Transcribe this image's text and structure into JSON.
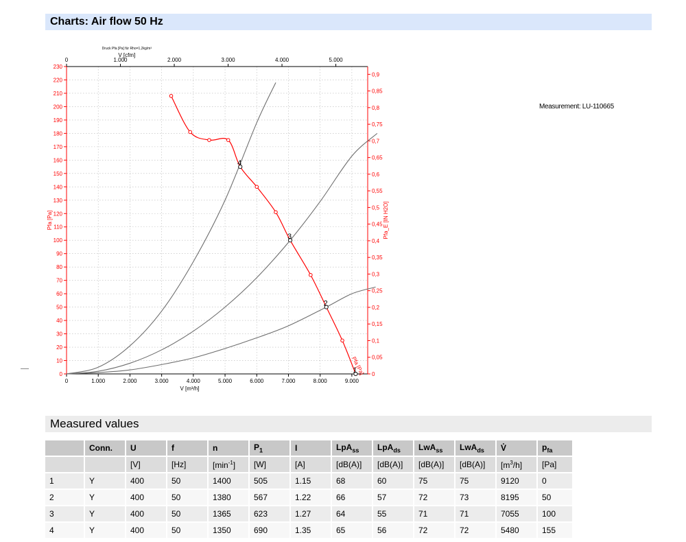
{
  "header": {
    "title": "Charts: Air flow 50 Hz"
  },
  "measurement_label": "Measurement: LU-110665",
  "measured_section": {
    "title": "Measured values"
  },
  "table": {
    "columns": [
      {
        "main": "",
        "sub": ""
      },
      {
        "main": "Conn.",
        "sub": ""
      },
      {
        "main": "U",
        "sub": ""
      },
      {
        "main": "f",
        "sub": ""
      },
      {
        "main": "n",
        "sub": ""
      },
      {
        "main": "P",
        "sub": "1"
      },
      {
        "main": "I",
        "sub": ""
      },
      {
        "main": "LpA",
        "sub": "ss"
      },
      {
        "main": "LpA",
        "sub": "ds"
      },
      {
        "main": "LwA",
        "sub": "ss"
      },
      {
        "main": "LwA",
        "sub": "ds"
      },
      {
        "main": "V̊",
        "sub": ""
      },
      {
        "main": "p",
        "sub": "fa"
      }
    ],
    "units": [
      "",
      "",
      "[V]",
      "[Hz]",
      "[min-1]",
      "[W]",
      "[A]",
      "[dB(A)]",
      "[dB(A)]",
      "[dB(A)]",
      "[dB(A)]",
      "[m3/h]",
      "[Pa]"
    ],
    "rows": [
      [
        "1",
        "Y",
        "400",
        "50",
        "1400",
        "505",
        "1.15",
        "68",
        "60",
        "75",
        "75",
        "9120",
        "0"
      ],
      [
        "2",
        "Y",
        "400",
        "50",
        "1380",
        "567",
        "1.22",
        "66",
        "57",
        "72",
        "73",
        "8195",
        "50"
      ],
      [
        "3",
        "Y",
        "400",
        "50",
        "1365",
        "623",
        "1.27",
        "64",
        "55",
        "71",
        "71",
        "7055",
        "100"
      ],
      [
        "4",
        "Y",
        "400",
        "50",
        "1350",
        "690",
        "1.35",
        "65",
        "56",
        "72",
        "72",
        "5480",
        "155"
      ]
    ]
  },
  "chart_data": {
    "type": "line",
    "title": "Druck Pfa [Pa] für Rho=1,2kg/m³",
    "xlabel": "V [m³/h]",
    "x2label": "V [cfm]",
    "ylabel": "Pfa [Pa]",
    "y2label": "Pfa_E [IN H2O]",
    "xlim": [
      0,
      9500
    ],
    "ylim": [
      0,
      230
    ],
    "x_ticks": [
      0,
      1000,
      2000,
      3000,
      4000,
      5000,
      6000,
      7000,
      8000,
      9000
    ],
    "x_tick_labels": [
      "0",
      "1.000",
      "2.000",
      "3.000",
      "4.000",
      "5.000",
      "6.000",
      "7.000",
      "8.000",
      "9.000"
    ],
    "x2_ticks": [
      0,
      1000,
      2000,
      3000,
      4000,
      5000
    ],
    "x2_tick_labels": [
      "0",
      "1.000",
      "2.000",
      "3.000",
      "4.000",
      "5.000"
    ],
    "y_ticks": [
      0,
      10,
      20,
      30,
      40,
      50,
      60,
      70,
      80,
      90,
      100,
      110,
      120,
      130,
      140,
      150,
      160,
      170,
      180,
      190,
      200,
      210,
      220,
      230
    ],
    "y2_ticks": [
      "0",
      "0,05",
      "0,1",
      "0,15",
      "0,2",
      "0,25",
      "0,3",
      "0,35",
      "0,4",
      "0,45",
      "0,5",
      "0,55",
      "0,6",
      "0,65",
      "0,7",
      "0,75",
      "0,8",
      "0,85",
      "0,9"
    ],
    "grid": true,
    "series": [
      {
        "name": "Pfa [Pa]",
        "color": "#ff0000",
        "x": [
          3300,
          3900,
          4500,
          5100,
          5480,
          6000,
          6600,
          7055,
          7700,
          8195,
          8700,
          9120
        ],
        "y": [
          208,
          181,
          175,
          175,
          155,
          140,
          121,
          100,
          74,
          50,
          25,
          0
        ]
      }
    ],
    "system_curves": [
      {
        "x": [
          0,
          1000,
          2000,
          3000,
          4000,
          5000,
          6000,
          6600
        ],
        "y": [
          0,
          5,
          21,
          47,
          84,
          130,
          188,
          218
        ]
      },
      {
        "x": [
          0,
          1000,
          2000,
          3000,
          4000,
          5000,
          6000,
          7055,
          8000,
          9000,
          9800
        ],
        "y": [
          0,
          2,
          8,
          18,
          32,
          50,
          72,
          100,
          129,
          163,
          180
        ]
      },
      {
        "x": [
          0,
          1000,
          2000,
          3000,
          4000,
          5000,
          6000,
          7000,
          8195,
          9000,
          9750
        ],
        "y": [
          0,
          1,
          3,
          7,
          12,
          19,
          27,
          36,
          50,
          60,
          65
        ]
      }
    ],
    "operating_points": [
      {
        "label": "1",
        "x": 9120,
        "y": 0
      },
      {
        "label": "2",
        "x": 8195,
        "y": 50
      },
      {
        "label": "3",
        "x": 7055,
        "y": 100
      },
      {
        "label": "4",
        "x": 5480,
        "y": 155
      }
    ]
  }
}
